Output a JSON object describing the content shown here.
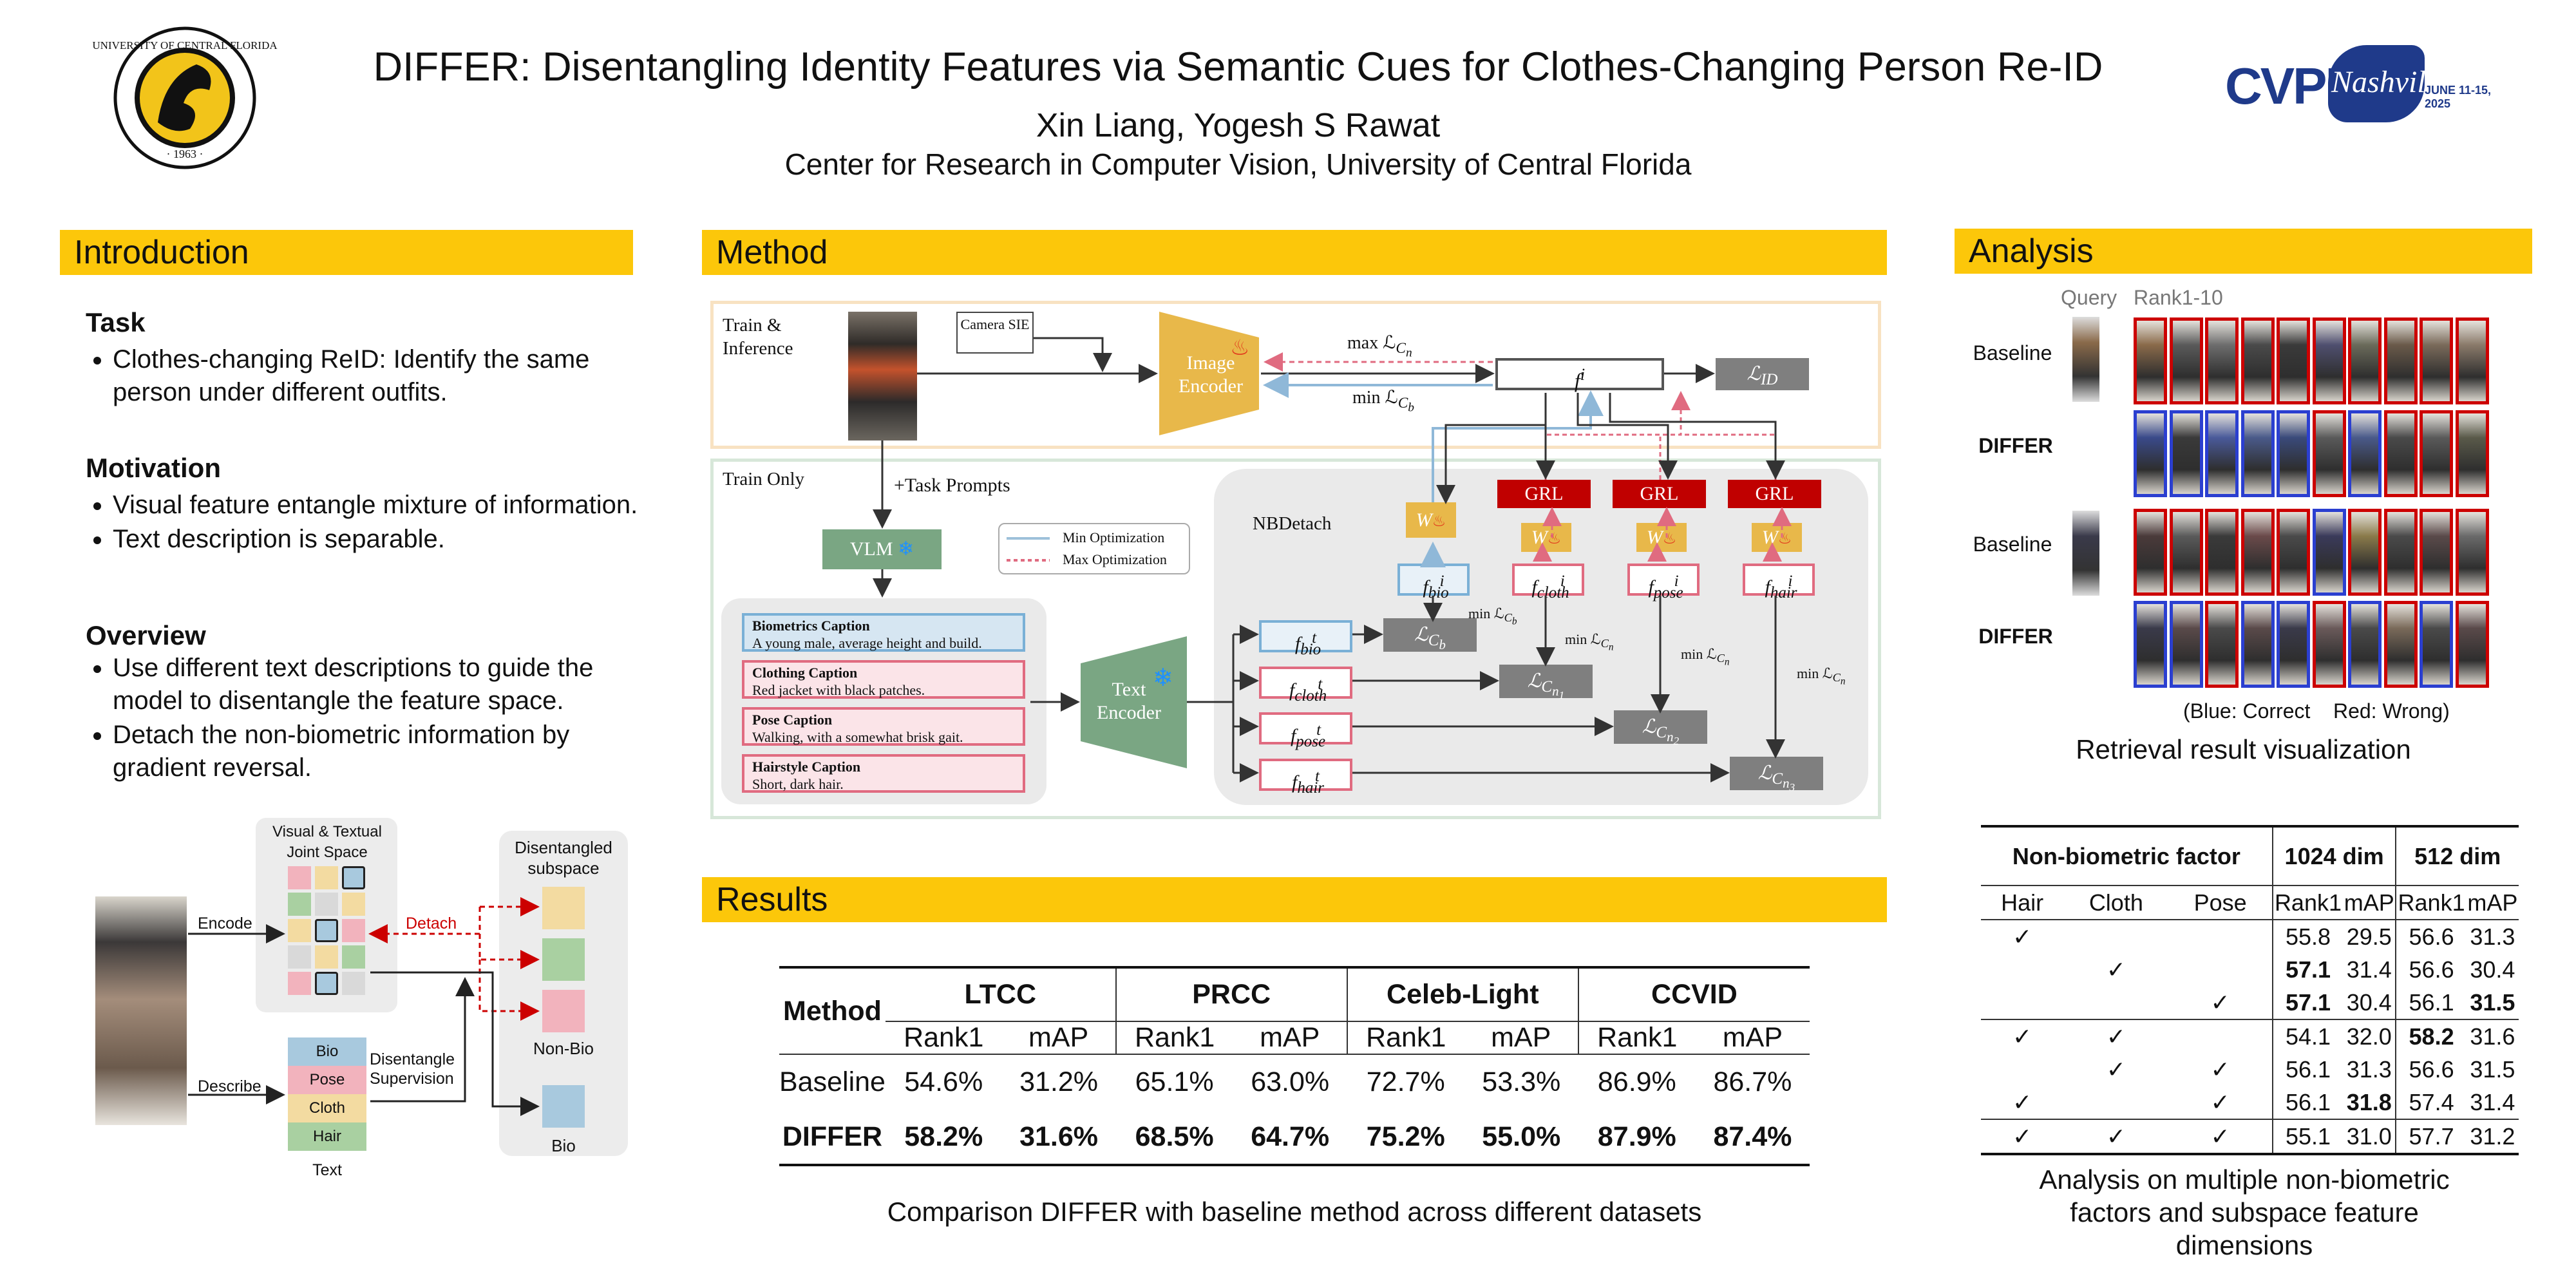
{
  "header": {
    "title": "DIFFER: Disentangling Identity Features via Semantic Cues for Clothes-Changing Person Re-ID",
    "authors": "Xin Liang,  Yogesh S Rawat",
    "affiliation": "Center for Research in Computer Vision, University of Central Florida",
    "left_logo_text": "UNIVERSITY OF CENTRAL FLORIDA · 1963 ·",
    "right_logo_text": "CVPR",
    "right_logo_script": "Nashville",
    "right_logo_date": "JUNE 11-15, 2025"
  },
  "introduction": {
    "heading": "Introduction",
    "task_title": "Task",
    "task_items": [
      "Clothes-changing ReID:  Identify the same person under different outfits."
    ],
    "motivation_title": "Motivation",
    "motivation_items": [
      "Visual feature entangle mixture of information.",
      "Text description is separable."
    ],
    "overview_title": "Overview",
    "overview_items": [
      "Use different text descriptions to guide the model to disentangle the feature space.",
      "Detach the non-biometric information by gradient reversal."
    ],
    "figure": {
      "joint_space_label": "Visual & Textual Joint Space",
      "disentangled_label": "Disentangled subspace",
      "encode": "Encode",
      "describe": "Describe",
      "detach": "Detach",
      "disentangle_supervision": "Disentangle Supervision",
      "text_items": [
        "Bio",
        "Pose",
        "Cloth",
        "Hair"
      ],
      "text_label": "Text",
      "non_bio": "Non-Bio",
      "bio": "Bio"
    }
  },
  "method": {
    "heading": "Method",
    "train_inference": "Train & Inference",
    "train_only": "Train Only",
    "camera_sie": "Camera SIE",
    "image_encoder": "Image Encoder",
    "max_loss_top": "max ℒ",
    "min_loss_top": "min ℒ",
    "f_i": "f",
    "l_id": "ℒ",
    "task_prompts": "+Task Prompts",
    "vlm": "VLM",
    "legend_min": "Min Optimization",
    "legend_max": "Max Optimization",
    "nbdetach": "NBDetach",
    "captions": [
      {
        "title": "Biometrics Caption",
        "text": "A young male, average height and build."
      },
      {
        "title": "Clothing Caption",
        "text": "Red jacket with black patches."
      },
      {
        "title": "Pose Caption",
        "text": "Walking, with a somewhat brisk gait."
      },
      {
        "title": "Hairstyle Caption",
        "text": "Short, dark hair."
      }
    ],
    "text_encoder": "Text Encoder",
    "grl": "GRL",
    "w": "W",
    "min_label": "min ℒ",
    "text_feats": [
      "bio",
      "cloth",
      "pose",
      "hair"
    ],
    "img_feats": [
      "bio",
      "cloth",
      "pose",
      "hair"
    ]
  },
  "results": {
    "heading": "Results",
    "method_col": "Method",
    "datasets": [
      "LTCC",
      "PRCC",
      "Celeb-Light",
      "CCVID"
    ],
    "metrics": [
      "Rank1",
      "mAP"
    ],
    "rows": [
      {
        "name": "Baseline",
        "values": [
          "54.6%",
          "31.2%",
          "65.1%",
          "63.0%",
          "72.7%",
          "53.3%",
          "86.9%",
          "86.7%"
        ],
        "bold": false
      },
      {
        "name": "DIFFER",
        "values": [
          "58.2%",
          "31.6%",
          "68.5%",
          "64.7%",
          "75.2%",
          "55.0%",
          "87.9%",
          "87.4%"
        ],
        "bold": true
      }
    ],
    "caption": "Comparison DIFFER with baseline method across different datasets"
  },
  "analysis": {
    "heading": "Analysis",
    "query": "Query",
    "rank_label": "Rank1-10",
    "rows": [
      {
        "label": "Baseline",
        "borders": [
          "r",
          "r",
          "r",
          "r",
          "r",
          "r",
          "r",
          "r",
          "r",
          "r"
        ],
        "colors": [
          "#8a6a4a",
          "#5a5a5a",
          "#6d6d6d",
          "#4a4a4a",
          "#3a3a3a",
          "#4f4f6f",
          "#6a6a5a",
          "#6a5a4a",
          "#7a6a5a",
          "#8a7a6a"
        ]
      },
      {
        "label": "DIFFER",
        "borders": [
          "b",
          "b",
          "b",
          "b",
          "b",
          "r",
          "b",
          "r",
          "r",
          "r"
        ],
        "colors": [
          "#3a4a8a",
          "#3a3a3a",
          "#4a5a9a",
          "#4a5a8a",
          "#3a4a7a",
          "#5a5a5a",
          "#4a5a8a",
          "#4a4a4a",
          "#5a5a5a",
          "#5a5a4a"
        ]
      },
      {
        "label": "Baseline",
        "borders": [
          "r",
          "r",
          "r",
          "r",
          "r",
          "b",
          "r",
          "r",
          "r",
          "r"
        ],
        "colors": [
          "#4a3a3a",
          "#5a5a5a",
          "#3a3a3a",
          "#6a4a4a",
          "#4a4a4a",
          "#3a3a5a",
          "#8a7a4a",
          "#4a4a4a",
          "#5a4a4a",
          "#6a6a6a"
        ]
      },
      {
        "label": "DIFFER",
        "borders": [
          "b",
          "b",
          "r",
          "b",
          "b",
          "r",
          "b",
          "r",
          "b",
          "r"
        ],
        "colors": [
          "#3a3a4a",
          "#5a4a4a",
          "#4a4a4a",
          "#5a4a4a",
          "#3a3a4a",
          "#6a5a5a",
          "#4a4a4a",
          "#7a6a5a",
          "#4a4a4a",
          "#5a4a4a"
        ]
      }
    ],
    "legend": "(Blue: Correct    Red: Wrong)",
    "vis_caption": "Retrieval result visualization",
    "table": {
      "factor_header": "Non-biometric factor",
      "dim1": "1024 dim",
      "dim2": "512 dim",
      "sub": [
        "Hair",
        "Cloth",
        "Pose",
        "Rank1",
        "mAP",
        "Rank1",
        "mAP"
      ],
      "rows": [
        [
          "✓",
          "",
          "",
          "55.8",
          "29.5",
          "56.6",
          "31.3"
        ],
        [
          "",
          "✓",
          "",
          "57.1",
          "31.4",
          "56.6",
          "30.4"
        ],
        [
          "",
          "",
          "✓",
          "57.1",
          "30.4",
          "56.1",
          "31.5"
        ],
        [
          "✓",
          "✓",
          "",
          "54.1",
          "32.0",
          "58.2",
          "31.6"
        ],
        [
          "",
          "✓",
          "✓",
          "56.1",
          "31.3",
          "56.6",
          "31.5"
        ],
        [
          "✓",
          "",
          "✓",
          "56.1",
          "31.8",
          "57.4",
          "31.4"
        ],
        [
          "✓",
          "✓",
          "✓",
          "55.1",
          "31.0",
          "57.7",
          "31.2"
        ]
      ],
      "bold": [
        [
          1,
          3
        ],
        [
          2,
          3
        ],
        [
          2,
          6
        ],
        [
          3,
          5
        ],
        [
          5,
          4
        ]
      ]
    },
    "caption": "Analysis on multiple non-biometric factors and subspace feature dimensions"
  }
}
